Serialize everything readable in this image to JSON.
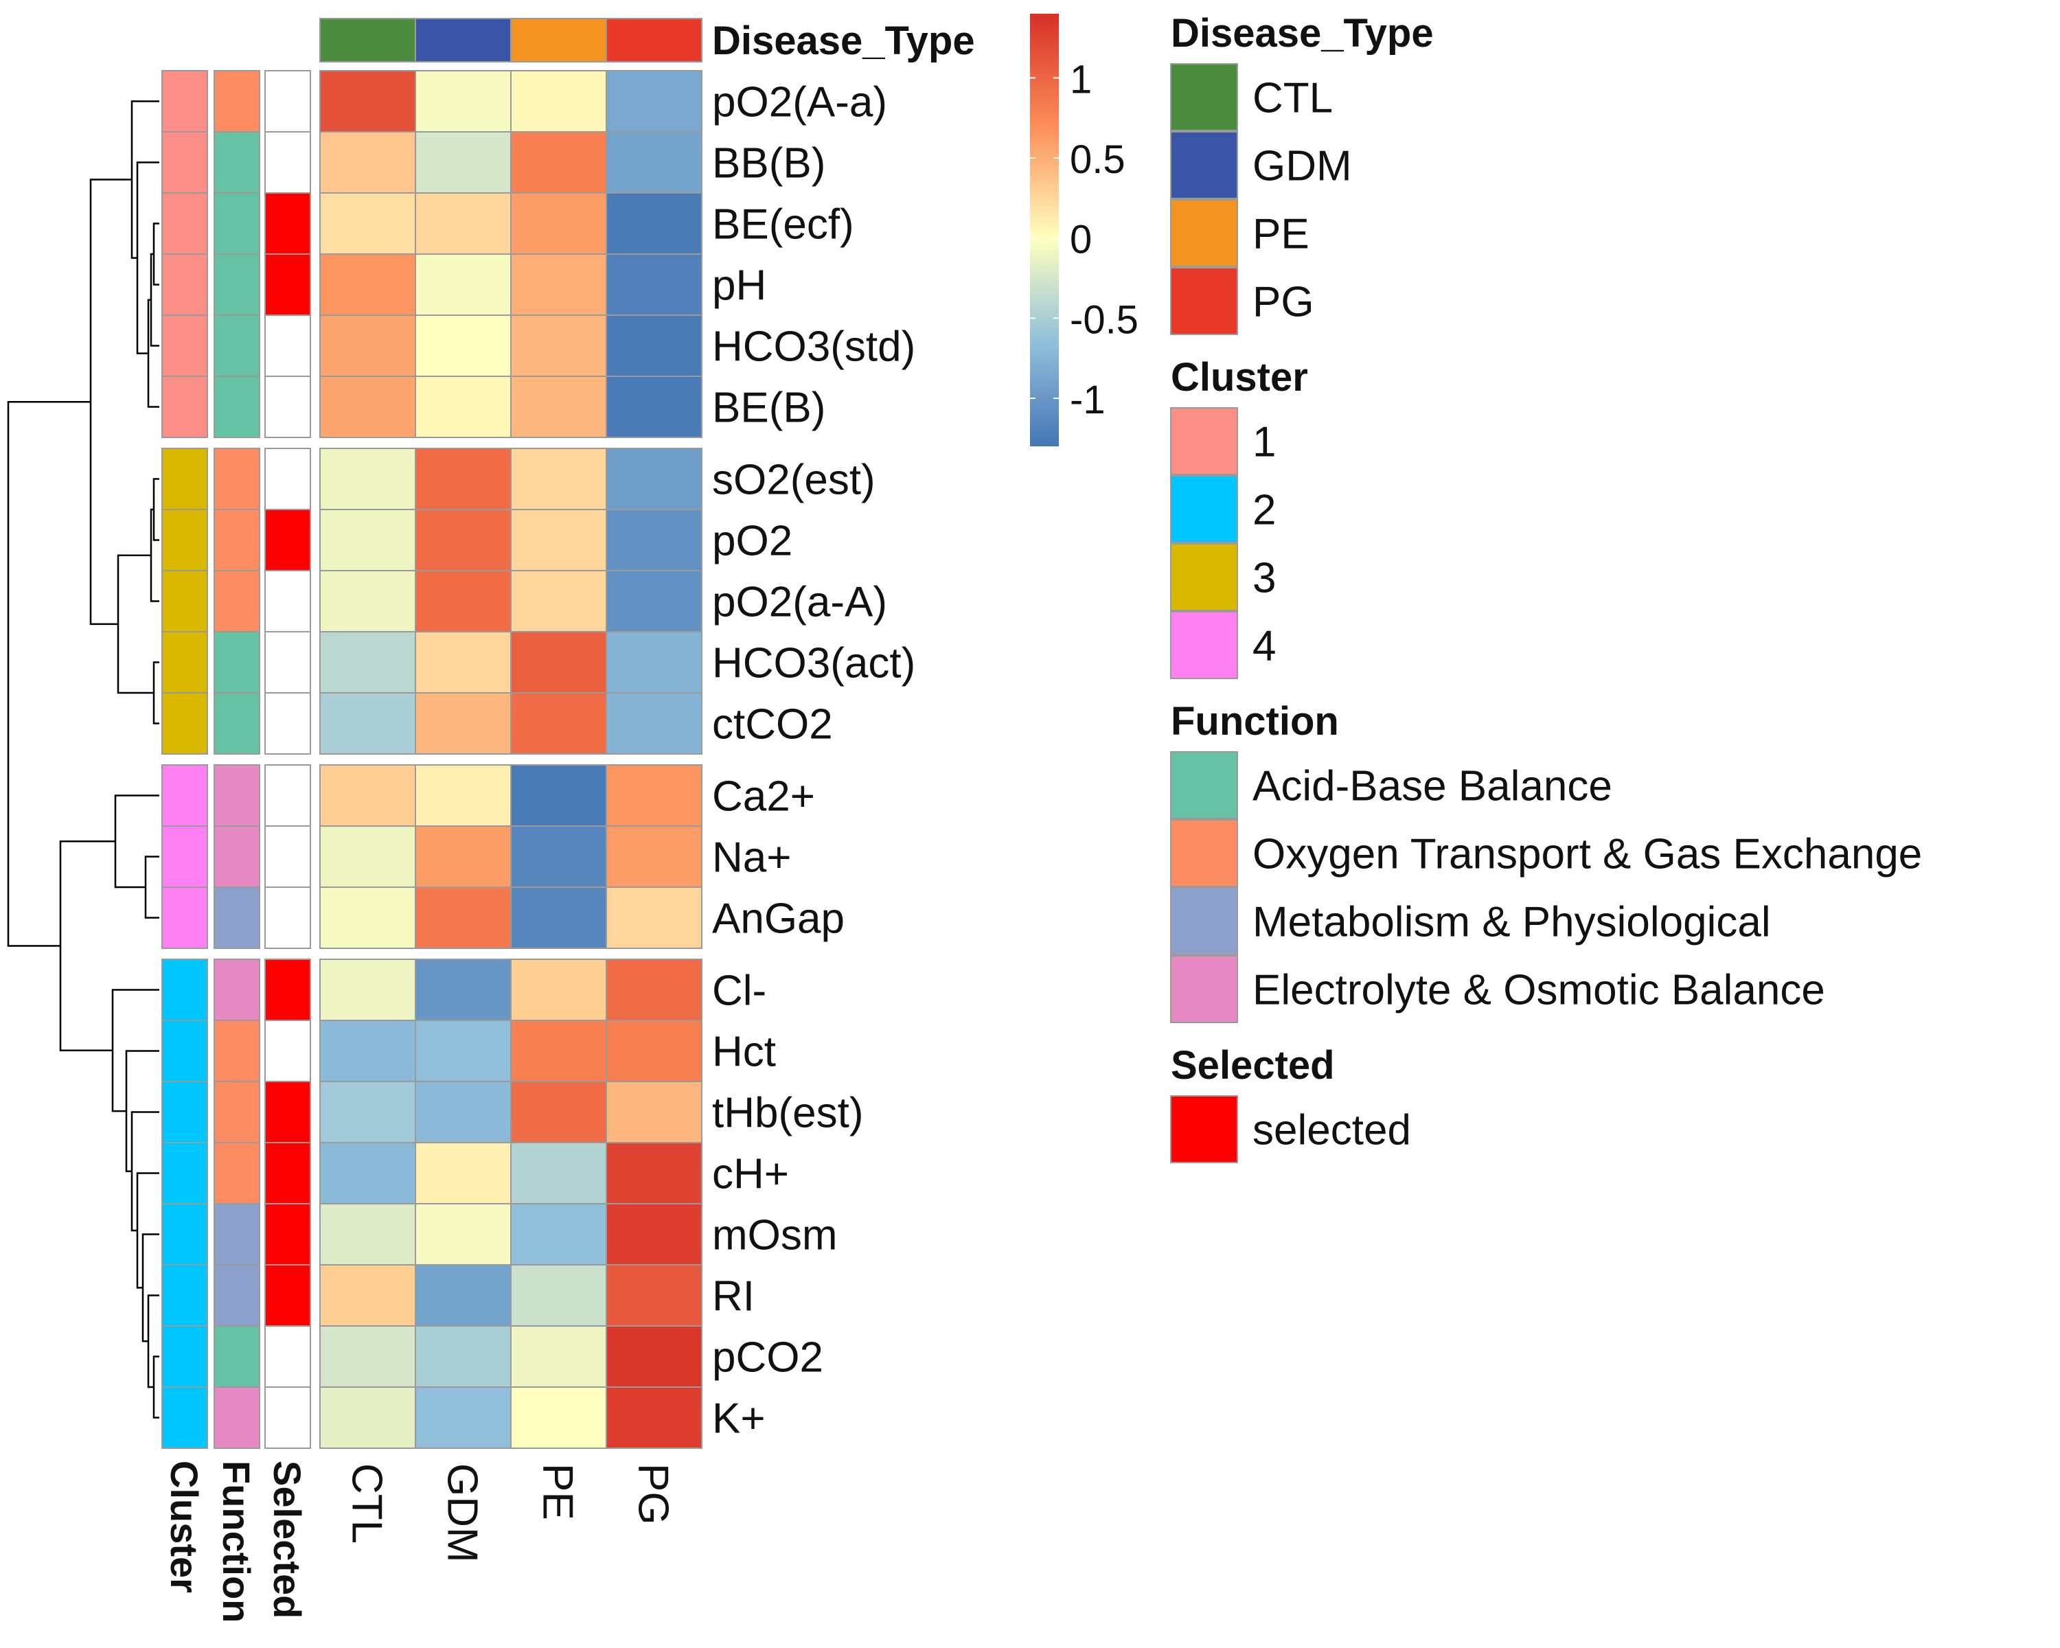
{
  "chart_data": {
    "type": "heatmap",
    "title": "",
    "disease_types": [
      "CTL",
      "GDM",
      "PE",
      "PG"
    ],
    "rows": [
      {
        "label": "pO2(A-a)",
        "cluster": "1",
        "function": "Oxygen Transport & Gas Exchange",
        "selected": false,
        "values": [
          1.15,
          -0.05,
          0.05,
          -0.85
        ]
      },
      {
        "label": "BB(B)",
        "cluster": "1",
        "function": "Acid-Base Balance",
        "selected": false,
        "values": [
          0.35,
          -0.25,
          0.8,
          -0.9
        ]
      },
      {
        "label": "BE(ecf)",
        "cluster": "1",
        "function": "Acid-Base Balance",
        "selected": true,
        "values": [
          0.2,
          0.25,
          0.6,
          -1.25
        ]
      },
      {
        "label": "pH",
        "cluster": "1",
        "function": "Acid-Base Balance",
        "selected": true,
        "values": [
          0.65,
          -0.05,
          0.5,
          -1.2
        ]
      },
      {
        "label": "HCO3(std)",
        "cluster": "1",
        "function": "Acid-Base Balance",
        "selected": false,
        "values": [
          0.55,
          0.0,
          0.45,
          -1.25
        ]
      },
      {
        "label": "BE(B)",
        "cluster": "1",
        "function": "Acid-Base Balance",
        "selected": false,
        "values": [
          0.55,
          0.05,
          0.45,
          -1.25
        ]
      },
      {
        "label": "sO2(est)",
        "cluster": "3",
        "function": "Oxygen Transport & Gas Exchange",
        "selected": false,
        "values": [
          -0.1,
          0.95,
          0.25,
          -0.95
        ]
      },
      {
        "label": "pO2",
        "cluster": "3",
        "function": "Oxygen Transport & Gas Exchange",
        "selected": true,
        "values": [
          -0.1,
          0.95,
          0.25,
          -1.05
        ]
      },
      {
        "label": "pO2(a-A)",
        "cluster": "3",
        "function": "Oxygen Transport & Gas Exchange",
        "selected": false,
        "values": [
          -0.1,
          0.95,
          0.25,
          -1.05
        ]
      },
      {
        "label": "HCO3(act)",
        "cluster": "3",
        "function": "Acid-Base Balance",
        "selected": false,
        "values": [
          -0.4,
          0.25,
          1.05,
          -0.75
        ]
      },
      {
        "label": "ctCO2",
        "cluster": "3",
        "function": "Acid-Base Balance",
        "selected": false,
        "values": [
          -0.5,
          0.45,
          0.95,
          -0.75
        ]
      },
      {
        "label": "Ca2+",
        "cluster": "4",
        "function": "Electrolyte & Osmotic Balance",
        "selected": false,
        "values": [
          0.3,
          0.1,
          -1.25,
          0.65
        ]
      },
      {
        "label": "Na+",
        "cluster": "4",
        "function": "Electrolyte & Osmotic Balance",
        "selected": false,
        "values": [
          -0.1,
          0.6,
          -1.15,
          0.6
        ]
      },
      {
        "label": "AnGap",
        "cluster": "4",
        "function": "Metabolism & Physiological",
        "selected": false,
        "values": [
          -0.05,
          0.85,
          -1.15,
          0.25
        ]
      },
      {
        "label": "Cl-",
        "cluster": "2",
        "function": "Electrolyte & Osmotic Balance",
        "selected": true,
        "values": [
          -0.1,
          -1.0,
          0.3,
          0.95
        ]
      },
      {
        "label": "Hct",
        "cluster": "2",
        "function": "Oxygen Transport & Gas Exchange",
        "selected": false,
        "values": [
          -0.7,
          -0.65,
          0.8,
          0.8
        ]
      },
      {
        "label": "tHb(est)",
        "cluster": "2",
        "function": "Oxygen Transport & Gas Exchange",
        "selected": true,
        "values": [
          -0.55,
          -0.7,
          0.95,
          0.45
        ]
      },
      {
        "label": "cH+",
        "cluster": "2",
        "function": "Oxygen Transport & Gas Exchange",
        "selected": true,
        "values": [
          -0.7,
          0.1,
          -0.45,
          1.25
        ]
      },
      {
        "label": "mOsm",
        "cluster": "2",
        "function": "Metabolism & Physiological",
        "selected": true,
        "values": [
          -0.2,
          -0.05,
          -0.65,
          1.3
        ]
      },
      {
        "label": "RI",
        "cluster": "2",
        "function": "Metabolism & Physiological",
        "selected": true,
        "values": [
          0.3,
          -0.9,
          -0.3,
          1.1
        ]
      },
      {
        "label": "pCO2",
        "cluster": "2",
        "function": "Acid-Base Balance",
        "selected": false,
        "values": [
          -0.25,
          -0.5,
          -0.1,
          1.35
        ]
      },
      {
        "label": "K+",
        "cluster": "2",
        "function": "Electrolyte & Osmotic Balance",
        "selected": false,
        "values": [
          -0.15,
          -0.65,
          0.0,
          1.3
        ]
      }
    ],
    "row_groups": [
      [
        0,
        5
      ],
      [
        6,
        10
      ],
      [
        11,
        13
      ],
      [
        14,
        21
      ]
    ],
    "column_annotation_title": "Disease_Type",
    "row_annotation_labels": [
      "Cluster",
      "Function",
      "Selected"
    ],
    "color_scale": {
      "range": [
        -1.3,
        1.4
      ],
      "ticks": [
        1,
        0.5,
        0,
        -0.5,
        -1
      ],
      "tick_labels": [
        "1",
        "0.5",
        "0",
        "-0.5",
        "-1"
      ],
      "stops": [
        {
          "v": -1.3,
          "c": "#4575b4"
        },
        {
          "v": -0.65,
          "c": "#91bfdb"
        },
        {
          "v": 0.0,
          "c": "#ffffbf"
        },
        {
          "v": 0.7,
          "c": "#fc8d59"
        },
        {
          "v": 1.4,
          "c": "#d73027"
        }
      ]
    },
    "legends": [
      {
        "title": "Disease_Type",
        "items": [
          {
            "label": "CTL",
            "color": "#4b8c3f"
          },
          {
            "label": "GDM",
            "color": "#3a55a5"
          },
          {
            "label": "PE",
            "color": "#f39420"
          },
          {
            "label": "PG",
            "color": "#e8392a"
          }
        ]
      },
      {
        "title": "Cluster",
        "items": [
          {
            "label": "1",
            "color": "#fb8f88"
          },
          {
            "label": "2",
            "color": "#00c6ff"
          },
          {
            "label": "3",
            "color": "#d9b800"
          },
          {
            "label": "4",
            "color": "#ff80f2"
          }
        ]
      },
      {
        "title": "Function",
        "items": [
          {
            "label": "Acid-Base Balance",
            "color": "#66c2a5"
          },
          {
            "label": "Oxygen Transport & Gas Exchange",
            "color": "#fc8d62"
          },
          {
            "label": "Metabolism & Physiological",
            "color": "#8da0cb"
          },
          {
            "label": "Electrolyte & Osmotic Balance",
            "color": "#e78ac3"
          }
        ]
      },
      {
        "title": "Selected",
        "items": [
          {
            "label": "selected",
            "color": "#ff0000"
          }
        ]
      }
    ],
    "dendrogram": {
      "leaves": [
        "pO2(A-a)",
        "BB(B)",
        "BE(ecf)",
        "pH",
        "HCO3(std)",
        "BE(B)",
        "sO2(est)",
        "pO2",
        "pO2(a-A)",
        "HCO3(act)",
        "ctCO2",
        "Ca2+",
        "Na+",
        "AnGap",
        "Cl-",
        "Hct",
        "tHb(est)",
        "cH+",
        "mOsm",
        "RI",
        "pCO2",
        "K+"
      ],
      "merges": [
        [
          2,
          3,
          0.2
        ],
        [
          22,
          4,
          0.3
        ],
        [
          23,
          5,
          0.4
        ],
        [
          1,
          24,
          0.8
        ],
        [
          0,
          25,
          1.0
        ],
        [
          6,
          7,
          0.2
        ],
        [
          27,
          8,
          0.3
        ],
        [
          9,
          10,
          0.2
        ],
        [
          28,
          29,
          1.5
        ],
        [
          26,
          30,
          2.5
        ],
        [
          12,
          13,
          0.5
        ],
        [
          11,
          32,
          1.6
        ],
        [
          20,
          21,
          0.2
        ],
        [
          19,
          34,
          0.4
        ],
        [
          18,
          35,
          0.6
        ],
        [
          17,
          36,
          0.8
        ],
        [
          16,
          37,
          1.0
        ],
        [
          15,
          38,
          1.2
        ],
        [
          14,
          39,
          1.7
        ],
        [
          33,
          40,
          3.6
        ],
        [
          31,
          41,
          5.5
        ]
      ],
      "max_height": 5.5
    }
  }
}
